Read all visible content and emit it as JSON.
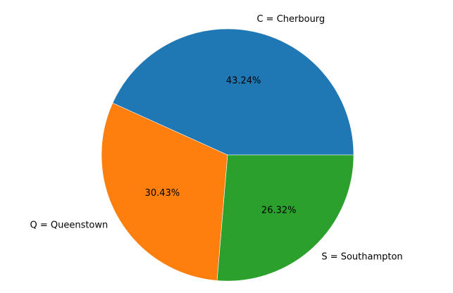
{
  "chart_data": {
    "type": "pie",
    "title": "",
    "slices": [
      {
        "label": "C = Cherbourg",
        "value": 43.24,
        "value_label": "43.24%",
        "color": "#1f77b4"
      },
      {
        "label": "Q = Queenstown",
        "value": 30.43,
        "value_label": "30.43%",
        "color": "#ff7f0e"
      },
      {
        "label": "S = Southampton",
        "value": 26.32,
        "value_label": "26.32%",
        "color": "#2ca02c"
      }
    ],
    "start_angle_deg": 0,
    "direction": "counterclockwise",
    "edge_color": "#ffffff"
  }
}
